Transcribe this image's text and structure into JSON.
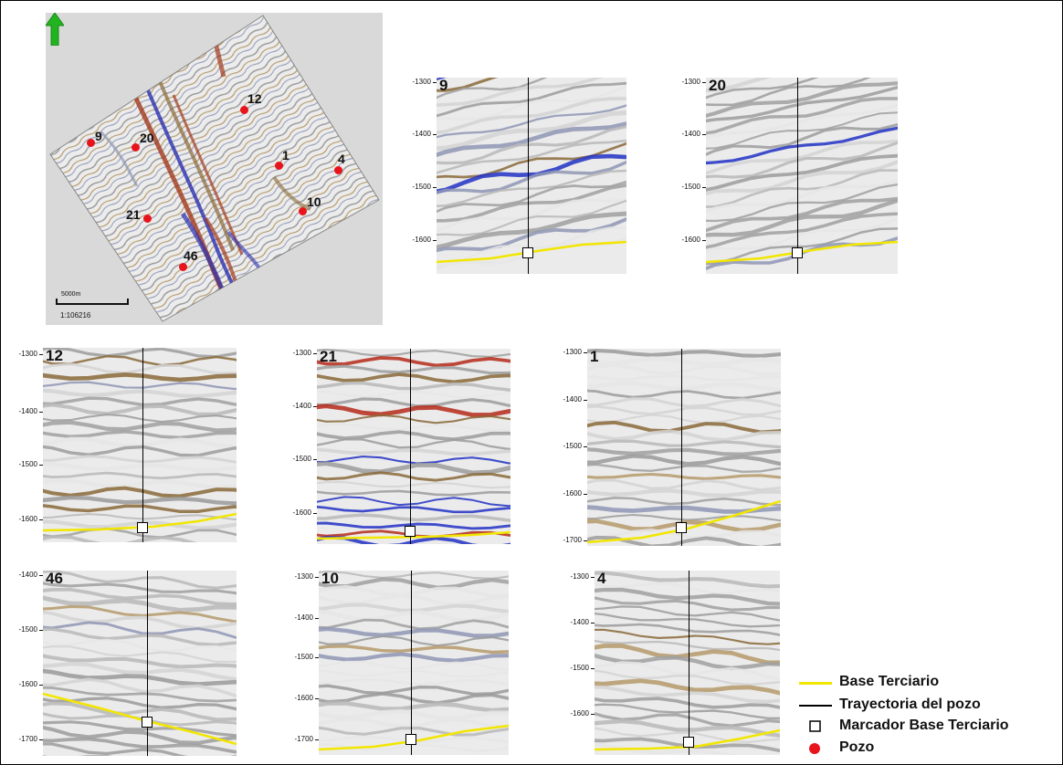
{
  "map": {
    "scale_label": "5000m",
    "scale_ratio": "1:106216",
    "wells": [
      "12",
      "9",
      "20",
      "1",
      "4",
      "10",
      "21",
      "46"
    ]
  },
  "panels": [
    {
      "well": "9",
      "ticks": [
        "-1300",
        "-1400",
        "-1500",
        "-1600"
      ]
    },
    {
      "well": "20",
      "ticks": [
        "-1300",
        "-1400",
        "-1500",
        "-1600"
      ]
    },
    {
      "well": "12",
      "ticks": [
        "-1300",
        "-1400",
        "-1500",
        "-1600"
      ]
    },
    {
      "well": "21",
      "ticks": [
        "-1300",
        "-1400",
        "-1500",
        "-1600"
      ]
    },
    {
      "well": "1",
      "ticks": [
        "-1300",
        "-1400",
        "-1500",
        "-1600",
        "-1700"
      ]
    },
    {
      "well": "46",
      "ticks": [
        "-1400",
        "-1500",
        "-1600",
        "-1700"
      ]
    },
    {
      "well": "10",
      "ticks": [
        "-1300",
        "-1400",
        "-1500",
        "-1600",
        "-1700"
      ]
    },
    {
      "well": "4",
      "ticks": [
        "-1300",
        "-1400",
        "-1500",
        "-1600"
      ]
    }
  ],
  "legend": {
    "base_terciario": "Base Terciario",
    "trayectoria": "Trayectoria del pozo",
    "marcador": "Marcador Base Terciario",
    "pozo": "Pozo"
  },
  "colors": {
    "horizon": "#f2e600",
    "trajectory": "#000000",
    "well_dot": "#e8141b",
    "north_arrow": "#22b321",
    "seismic_red": "#b52a1a",
    "seismic_blue": "#2231c4",
    "seismic_brown": "#8a6a3a",
    "seismic_gray": "#8f8f8f"
  },
  "icons": [
    "north-arrow-icon",
    "well-dot-icon",
    "marker-square-icon"
  ]
}
